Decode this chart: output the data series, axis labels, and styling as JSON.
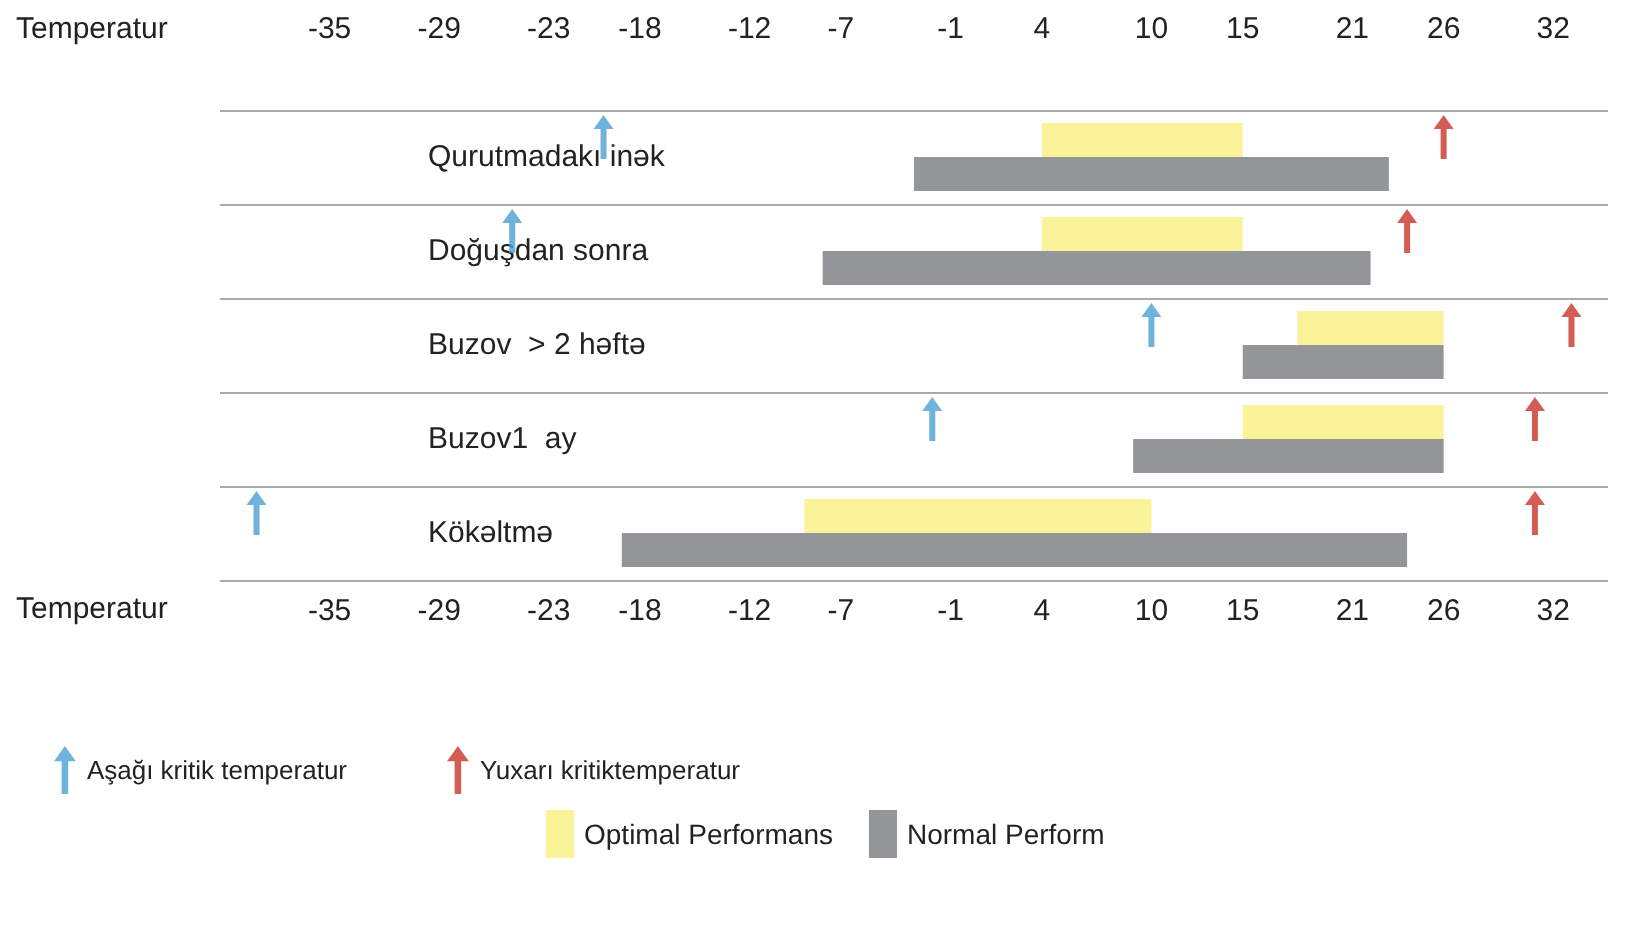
{
  "chart_data": {
    "type": "bar",
    "orientation": "horizontal",
    "xlabel": "Temperatur",
    "x2label": "Temperatur",
    "categories": [
      "Qurutmadakı inək",
      "Doğuşdan sonra",
      "Buzov  > 2 həftə",
      "Buzov1  ay",
      "Kökəltmə"
    ],
    "xlim": [
      -41,
      35
    ],
    "xticks": [
      -35,
      -29,
      -23,
      -18,
      -12,
      -7,
      -1,
      4,
      10,
      15,
      21,
      26,
      32
    ],
    "x2lim": [
      -41,
      35
    ],
    "x2ticks": [
      -35,
      -29,
      -23,
      -18,
      -12,
      -7,
      -1,
      4,
      10,
      15,
      21,
      26,
      32
    ],
    "grid": "y",
    "legend": "bottom",
    "series": [
      {
        "name": "Optimal Performans",
        "type": "bar",
        "color": "#faf39a",
        "base": [
          4,
          4,
          18,
          15,
          -9
        ],
        "values": [
          11,
          11,
          8,
          11,
          19
        ]
      },
      {
        "name": "Normal Perform",
        "type": "bar",
        "color": "#939598",
        "base": [
          -3,
          -8,
          15,
          9,
          -19
        ],
        "values": [
          26,
          30,
          11,
          17,
          43
        ]
      },
      {
        "name": "Aşağı kritik temperatur",
        "type": "scatter",
        "color": "#4a9fd4",
        "values": [
          -20,
          -25,
          10,
          -2,
          -39
        ]
      },
      {
        "name": "Yuxarı kritiktemperatur",
        "type": "scatter",
        "color": "#c8352b",
        "values": [
          26,
          24,
          33,
          31,
          31
        ]
      }
    ]
  }
}
